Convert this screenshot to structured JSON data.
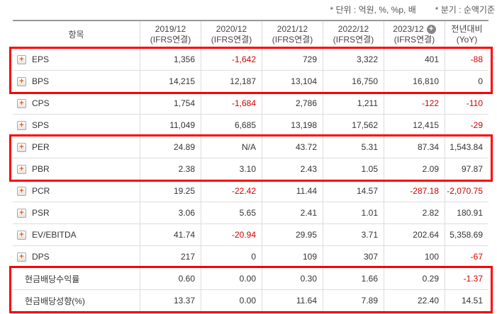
{
  "meta": {
    "unit_note": "* 단위 : 억원, %, %p, 배",
    "basis_note": "* 분기 : 순액기준"
  },
  "table": {
    "item_header": "항목",
    "columns": [
      {
        "line1": "2019/12",
        "line2": "(IFRS연결)",
        "has_plus": false
      },
      {
        "line1": "2020/12",
        "line2": "(IFRS연결)",
        "has_plus": false
      },
      {
        "line1": "2021/12",
        "line2": "(IFRS연결)",
        "has_plus": false
      },
      {
        "line1": "2022/12",
        "line2": "(IFRS연결)",
        "has_plus": false
      },
      {
        "line1": "2023/12",
        "line2": "(IFRS연결)",
        "has_plus": true
      },
      {
        "line1": "전년대비",
        "line2": "(YoY)",
        "has_plus": false
      }
    ],
    "rows": [
      {
        "label": "EPS",
        "has_icon": true,
        "values": [
          "1,356",
          "-1,642",
          "729",
          "3,322",
          "401",
          "-88"
        ]
      },
      {
        "label": "BPS",
        "has_icon": true,
        "values": [
          "14,215",
          "12,187",
          "13,104",
          "16,750",
          "16,810",
          "0"
        ]
      },
      {
        "label": "CPS",
        "has_icon": true,
        "values": [
          "1,754",
          "-1,684",
          "2,786",
          "1,211",
          "-122",
          "-110"
        ]
      },
      {
        "label": "SPS",
        "has_icon": true,
        "values": [
          "11,049",
          "6,685",
          "13,198",
          "17,562",
          "12,415",
          "-29"
        ]
      },
      {
        "label": "PER",
        "has_icon": true,
        "values": [
          "24.89",
          "N/A",
          "43.72",
          "5.31",
          "87.34",
          "1,543.84"
        ]
      },
      {
        "label": "PBR",
        "has_icon": true,
        "values": [
          "2.38",
          "3.10",
          "2.43",
          "1.05",
          "2.09",
          "97.87"
        ]
      },
      {
        "label": "PCR",
        "has_icon": true,
        "values": [
          "19.25",
          "-22.42",
          "11.44",
          "14.57",
          "-287.18",
          "-2,070.75"
        ]
      },
      {
        "label": "PSR",
        "has_icon": true,
        "values": [
          "3.06",
          "5.65",
          "2.41",
          "1.01",
          "2.82",
          "180.91"
        ]
      },
      {
        "label": "EV/EBITDA",
        "has_icon": true,
        "values": [
          "41.74",
          "-20.94",
          "29.95",
          "3.71",
          "202.64",
          "5,358.69"
        ]
      },
      {
        "label": "DPS",
        "has_icon": true,
        "values": [
          "217",
          "0",
          "109",
          "307",
          "100",
          "-67"
        ]
      },
      {
        "label": "현금배당수익률",
        "has_icon": false,
        "values": [
          "0.60",
          "0.00",
          "0.30",
          "1.66",
          "0.29",
          "-1.37"
        ]
      },
      {
        "label": "현금배당성향(%)",
        "has_icon": false,
        "values": [
          "13.37",
          "0.00",
          "11.64",
          "7.89",
          "22.40",
          "14.51"
        ]
      }
    ],
    "highlight_groups": [
      [
        0,
        1
      ],
      [
        4,
        5
      ],
      [
        10,
        11
      ]
    ]
  },
  "colors": {
    "negative_value": "#d40000",
    "highlight_border": "#ff0000",
    "accent_orange": "#f25c05",
    "header_text": "#444444",
    "value_text": "#333333",
    "note_text": "#555555"
  }
}
